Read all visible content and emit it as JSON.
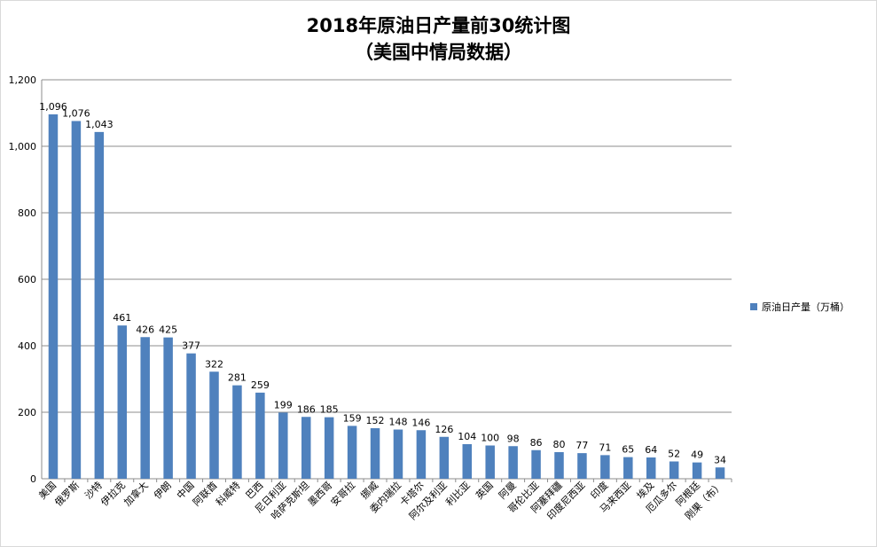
{
  "title_line1": "2018年原油日产量前30统计图",
  "title_line2": "（美国中情局数据）",
  "chart_data": {
    "type": "bar",
    "title": "2018年原油日产量前30统计图（美国中情局数据）",
    "categories": [
      "美国",
      "俄罗斯",
      "沙特",
      "伊拉克",
      "加拿大",
      "伊朗",
      "中国",
      "阿联酋",
      "科威特",
      "巴西",
      "尼日利亚",
      "哈萨克斯坦",
      "墨西哥",
      "安哥拉",
      "挪威",
      "委内瑞拉",
      "卡塔尔",
      "阿尔及利亚",
      "利比亚",
      "英国",
      "阿曼",
      "哥伦比亚",
      "阿塞拜疆",
      "印度尼西亚",
      "印度",
      "马来西亚",
      "埃及",
      "厄瓜多尔",
      "阿根廷",
      "刚果（布）"
    ],
    "series": [
      {
        "name": "原油日产量（万桶）",
        "color": "#4f81bd",
        "values": [
          1096,
          1076,
          1043,
          461,
          426,
          425,
          377,
          322,
          281,
          259,
          199,
          186,
          185,
          159,
          152,
          148,
          146,
          126,
          104,
          100,
          98,
          86,
          80,
          77,
          71,
          65,
          64,
          52,
          49,
          34
        ],
        "labels": [
          "1,096",
          "1,076",
          "1,043",
          "461",
          "426",
          "425",
          "377",
          "322",
          "281",
          "259",
          "199",
          "186",
          "185",
          "159",
          "152",
          "148",
          "146",
          "126",
          "104",
          "100",
          "98",
          "86",
          "80",
          "77",
          "71",
          "65",
          "64",
          "52",
          "49",
          "34"
        ]
      }
    ],
    "ylim": [
      0,
      1200
    ],
    "yticks": [
      0,
      200,
      400,
      600,
      800,
      1000,
      1200
    ],
    "ytick_labels": [
      "0",
      "200",
      "400",
      "600",
      "800",
      "1,000",
      "1,200"
    ],
    "grid": true,
    "legend_position": "right",
    "xlabel": "",
    "ylabel": ""
  }
}
